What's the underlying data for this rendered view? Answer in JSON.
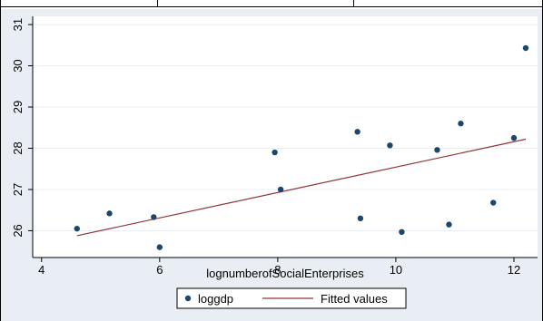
{
  "chart_data": {
    "type": "scatter",
    "xlabel": "lognumberofSocialEnterprises",
    "ylabel": "",
    "xlim": [
      3.85,
      12.4
    ],
    "ylim": [
      25.35,
      31.2
    ],
    "xticks": [
      4,
      6,
      8,
      10,
      12
    ],
    "yticks": [
      26,
      27,
      28,
      29,
      30,
      31
    ],
    "grid": "horizontal",
    "legend": "bottom-center",
    "series": [
      {
        "name": "loggdp",
        "kind": "scatter",
        "color": "#1a476f",
        "x": [
          4.6,
          5.15,
          5.9,
          6.0,
          7.95,
          8.05,
          9.35,
          9.4,
          9.9,
          10.1,
          10.7,
          10.9,
          11.1,
          11.65,
          12.0,
          12.2
        ],
        "y": [
          26.05,
          26.42,
          26.33,
          25.6,
          27.9,
          27.0,
          28.4,
          26.3,
          28.07,
          25.97,
          27.96,
          26.15,
          28.6,
          26.68,
          28.25,
          30.43
        ]
      },
      {
        "name": "Fitted values",
        "kind": "line",
        "color": "#90353b",
        "x": [
          4.6,
          12.2
        ],
        "y": [
          25.88,
          28.22
        ]
      }
    ]
  },
  "colors": {
    "plot_background": "#ffffff",
    "outer_background": "#e8eef3",
    "grid": "#e8eef3",
    "marker": "#1a476f",
    "fit_line": "#90353b"
  }
}
